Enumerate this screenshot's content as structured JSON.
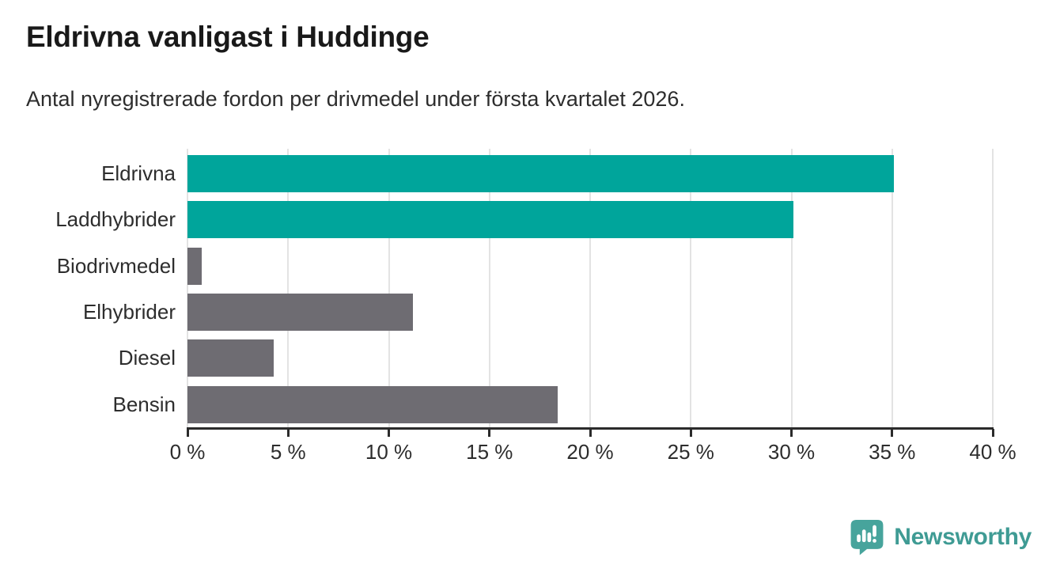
{
  "chart_data": {
    "type": "bar",
    "orientation": "horizontal",
    "title": "Eldrivna vanligast i Huddinge",
    "subtitle": "Antal nyregistrerade fordon per drivmedel under första kvartalet 2026.",
    "categories": [
      "Eldrivna",
      "Laddhybrider",
      "Biodrivmedel",
      "Elhybrider",
      "Diesel",
      "Bensin"
    ],
    "values": [
      35.1,
      30.1,
      0.7,
      11.2,
      4.3,
      18.4
    ],
    "unit": "%",
    "xlim": [
      0,
      40
    ],
    "x_ticks": [
      0,
      5,
      10,
      15,
      20,
      25,
      30,
      35,
      40
    ],
    "x_tick_labels": [
      "0 %",
      "5 %",
      "10 %",
      "15 %",
      "20 %",
      "25 %",
      "30 %",
      "35 %",
      "40 %"
    ],
    "grid": true,
    "legend": "none",
    "colors": {
      "highlight": "#00a59b",
      "default": "#6e6c72"
    },
    "row_colors": [
      "highlight",
      "highlight",
      "default",
      "default",
      "default",
      "default"
    ],
    "gridline_color": "#e3e3e3",
    "axis_color": "#2b2b2b"
  },
  "branding": {
    "logo_text": "Newsworthy",
    "logo_icon": "newsworthy-speech-bubble-bar-chart-icon",
    "brand_color": "#3f9b94"
  }
}
